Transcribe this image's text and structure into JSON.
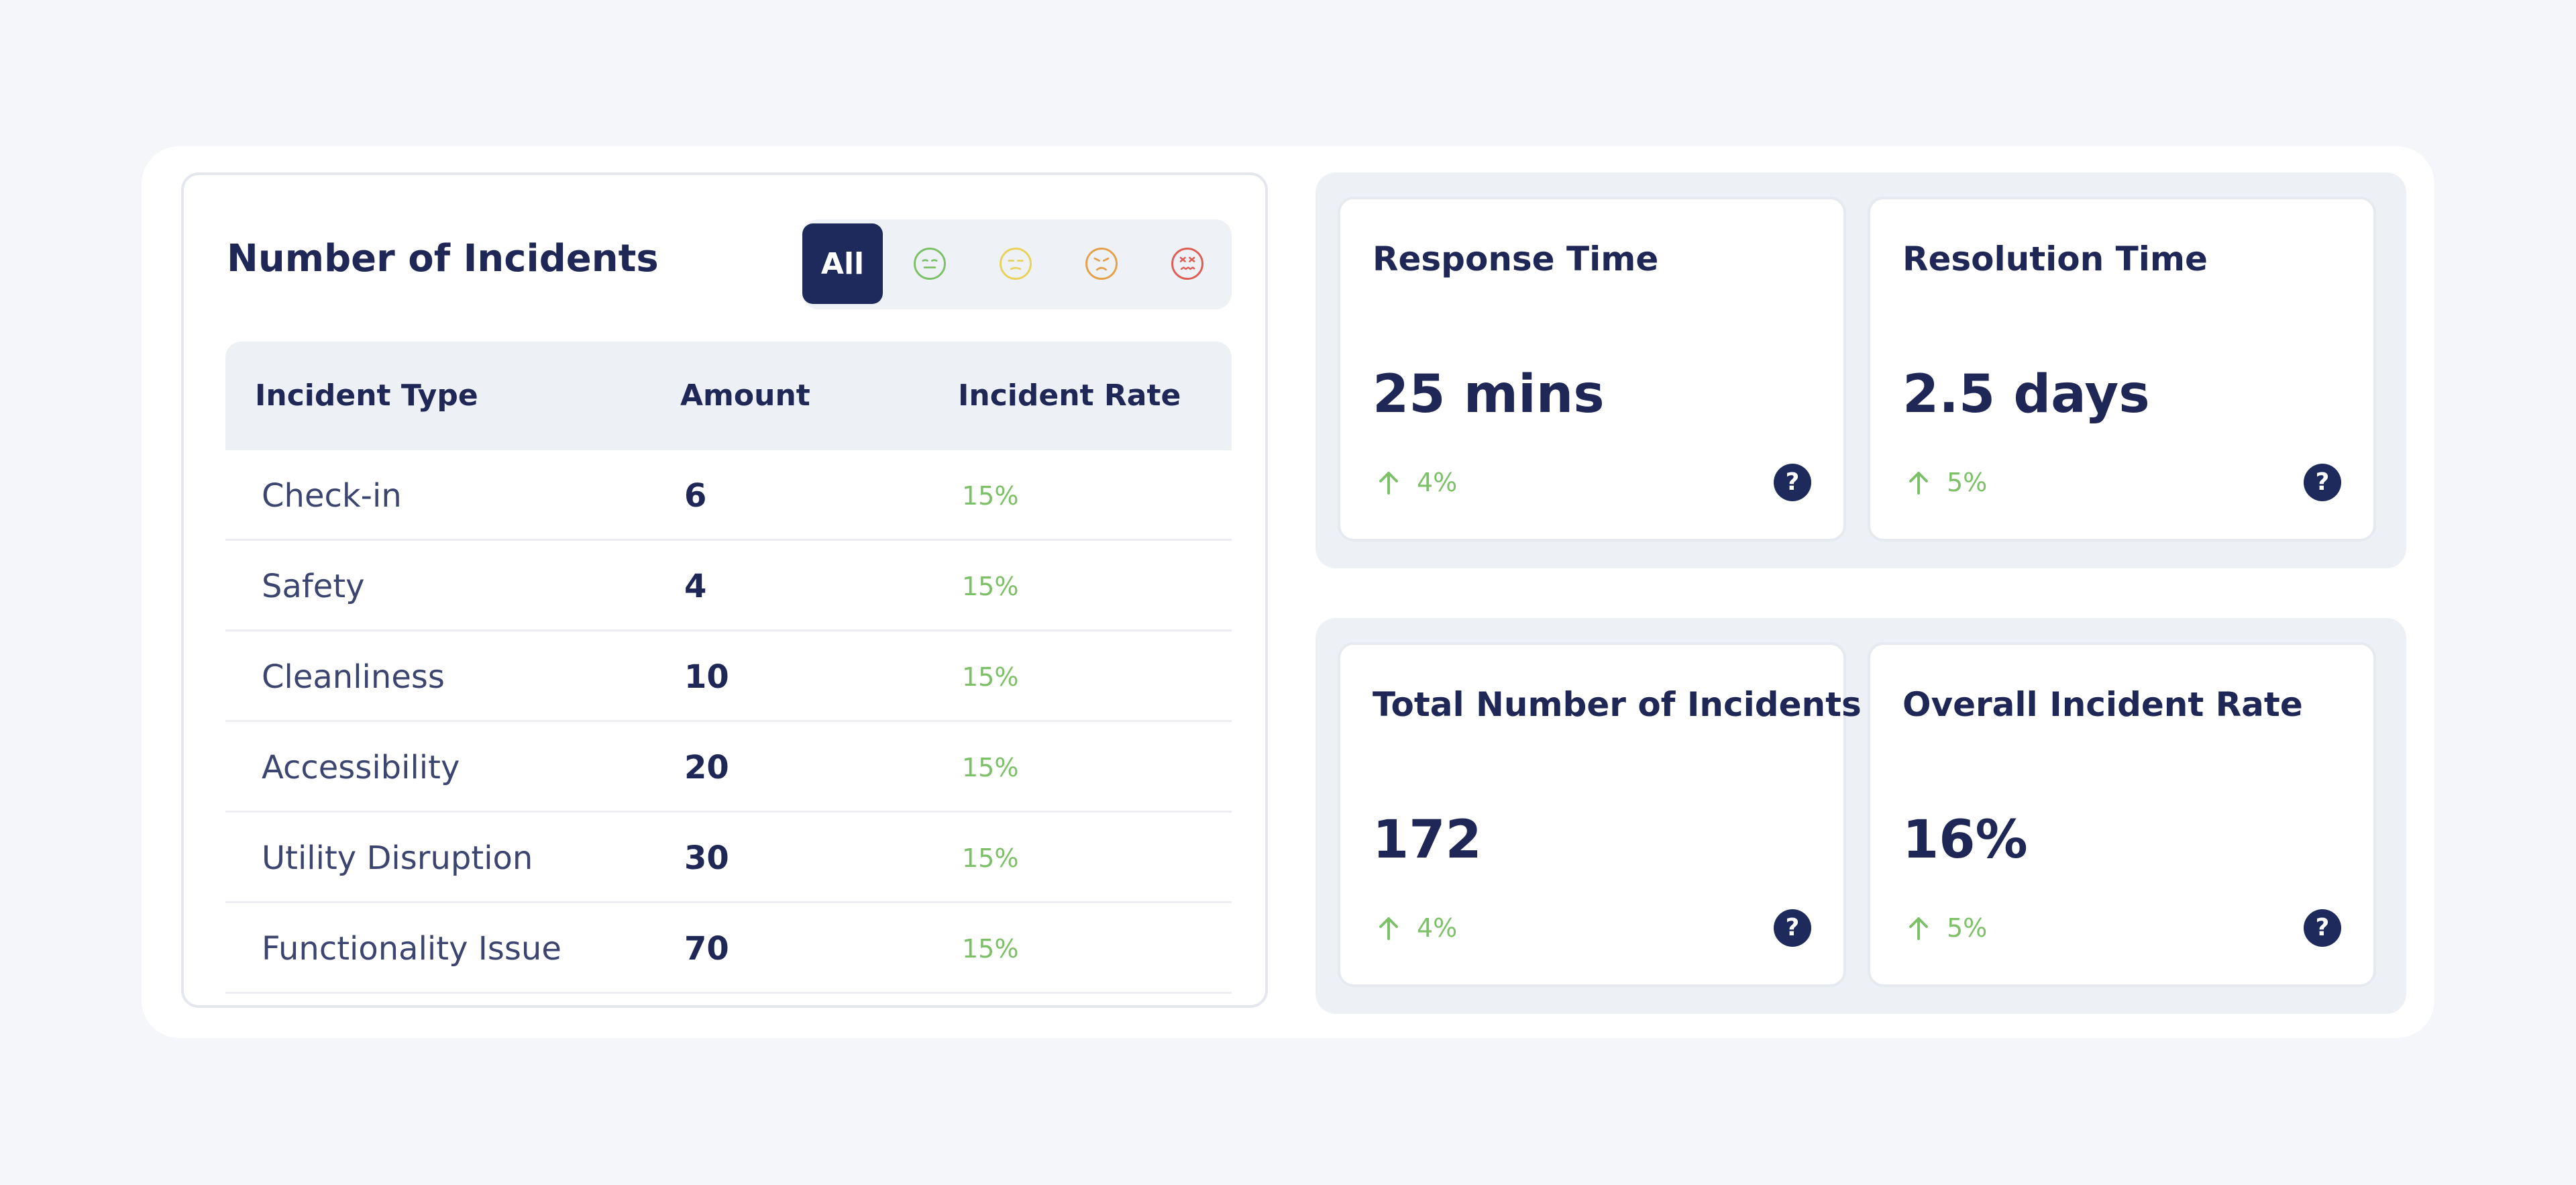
{
  "incidents_panel": {
    "title": "Number of Incidents",
    "filters": [
      {
        "label": "All",
        "active": true
      },
      {
        "icon": "content-face-icon",
        "color": "#7cc067"
      },
      {
        "icon": "neutral-face-icon",
        "color": "#e8d25a"
      },
      {
        "icon": "annoyed-face-icon",
        "color": "#e4a04a"
      },
      {
        "icon": "angry-face-icon",
        "color": "#de5e55"
      }
    ],
    "columns": {
      "type": "Incident Type",
      "amount": "Amount",
      "rate": "Incident Rate"
    },
    "rows": [
      {
        "type": "Check-in",
        "amount": "6",
        "rate": "15%"
      },
      {
        "type": "Safety",
        "amount": "4",
        "rate": "15%"
      },
      {
        "type": "Cleanliness",
        "amount": "10",
        "rate": "15%"
      },
      {
        "type": "Accessibility",
        "amount": "20",
        "rate": "15%"
      },
      {
        "type": "Utility Disruption",
        "amount": "30",
        "rate": "15%"
      },
      {
        "type": "Functionality Issue",
        "amount": "70",
        "rate": "15%"
      }
    ]
  },
  "metrics": [
    {
      "title": "Response Time",
      "value": "25 mins",
      "trend": "4%",
      "trend_direction": "up"
    },
    {
      "title": "Resolution Time",
      "value": "2.5 days",
      "trend": "5%",
      "trend_direction": "up"
    },
    {
      "title": "Total Number of Incidents",
      "value": "172",
      "trend": "4%",
      "trend_direction": "up"
    },
    {
      "title": "Overall Incident Rate",
      "value": "16%",
      "trend": "5%",
      "trend_direction": "up"
    }
  ],
  "help_label": "?",
  "colors": {
    "primary": "#1d2a5b",
    "positive": "#7cc067",
    "panel_bg": "#edf0f5",
    "page_bg": "#f4f6fa"
  }
}
